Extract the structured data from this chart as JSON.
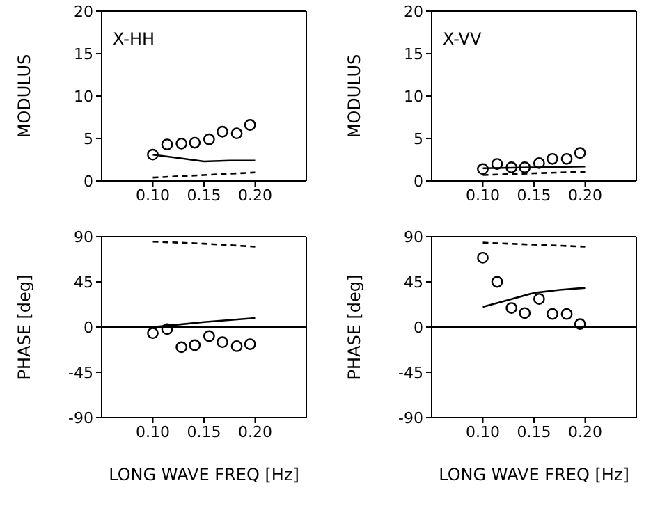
{
  "chart_data": [
    {
      "type": "scatter",
      "ylabel": "MODULUS",
      "annotations": [
        "X-HH"
      ],
      "xlim": [
        0.05,
        0.25
      ],
      "xticks": [
        {
          "value": 0.1,
          "label": "0.10"
        },
        {
          "value": 0.15,
          "label": "0.15"
        },
        {
          "value": 0.2,
          "label": "0.20"
        }
      ],
      "ylim": [
        0,
        20
      ],
      "yticks": [
        0,
        5,
        10,
        15,
        20
      ],
      "series": [
        {
          "marker": "circle",
          "color": "#000000",
          "x": [
            0.1,
            0.114,
            0.128,
            0.141,
            0.155,
            0.168,
            0.182,
            0.195
          ],
          "values": [
            3.1,
            4.3,
            4.4,
            4.5,
            4.9,
            5.8,
            5.6,
            6.6
          ]
        },
        {
          "type": "line",
          "line_style": "solid",
          "color": "#000000",
          "x": [
            0.1,
            0.125,
            0.15,
            0.175,
            0.2
          ],
          "values": [
            3.1,
            2.7,
            2.3,
            2.4,
            2.4
          ]
        },
        {
          "type": "line",
          "line_style": "dashed",
          "color": "#000000",
          "x": [
            0.1,
            0.15,
            0.2
          ],
          "values": [
            0.4,
            0.7,
            1.0
          ]
        }
      ]
    },
    {
      "type": "scatter",
      "ylabel": "MODULUS",
      "annotations": [
        "X-VV"
      ],
      "xlim": [
        0.05,
        0.25
      ],
      "xticks": [
        {
          "value": 0.1,
          "label": "0.10"
        },
        {
          "value": 0.15,
          "label": "0.15"
        },
        {
          "value": 0.2,
          "label": "0.20"
        }
      ],
      "ylim": [
        0,
        20
      ],
      "yticks": [
        0,
        5,
        10,
        15,
        20
      ],
      "series": [
        {
          "marker": "circle",
          "color": "#000000",
          "x": [
            0.1,
            0.114,
            0.128,
            0.141,
            0.155,
            0.168,
            0.182,
            0.195
          ],
          "values": [
            1.4,
            2.0,
            1.6,
            1.6,
            2.1,
            2.6,
            2.6,
            3.3
          ]
        },
        {
          "type": "line",
          "line_style": "solid",
          "color": "#000000",
          "x": [
            0.1,
            0.15,
            0.2
          ],
          "values": [
            1.5,
            1.6,
            1.7
          ]
        },
        {
          "type": "line",
          "line_style": "dashed",
          "color": "#000000",
          "x": [
            0.1,
            0.15,
            0.2
          ],
          "values": [
            0.7,
            0.9,
            1.1
          ]
        }
      ]
    },
    {
      "type": "scatter",
      "ylabel": "PHASE [deg]",
      "xlabel": "LONG WAVE FREQ [Hz]",
      "xlim": [
        0.05,
        0.25
      ],
      "xticks": [
        {
          "value": 0.1,
          "label": "0.10"
        },
        {
          "value": 0.15,
          "label": "0.15"
        },
        {
          "value": 0.2,
          "label": "0.20"
        }
      ],
      "ylim": [
        -90,
        90
      ],
      "yticks": [
        -90,
        -45,
        0,
        45,
        90
      ],
      "ref_lines": [
        {
          "axis": "y",
          "value": 0,
          "color": "#000000"
        }
      ],
      "series": [
        {
          "marker": "circle",
          "color": "#000000",
          "x": [
            0.1,
            0.114,
            0.128,
            0.141,
            0.155,
            0.168,
            0.182,
            0.195
          ],
          "values": [
            -6,
            -2,
            -20,
            -18,
            -9,
            -15,
            -19,
            -17
          ]
        },
        {
          "type": "line",
          "line_style": "solid",
          "color": "#000000",
          "x": [
            0.1,
            0.15,
            0.2
          ],
          "values": [
            0,
            5,
            9
          ]
        },
        {
          "type": "line",
          "line_style": "dashed",
          "color": "#000000",
          "x": [
            0.1,
            0.15,
            0.2
          ],
          "values": [
            85,
            83,
            80
          ]
        }
      ]
    },
    {
      "type": "scatter",
      "ylabel": "PHASE [deg]",
      "xlabel": "LONG WAVE FREQ [Hz]",
      "xlim": [
        0.05,
        0.25
      ],
      "xticks": [
        {
          "value": 0.1,
          "label": "0.10"
        },
        {
          "value": 0.15,
          "label": "0.15"
        },
        {
          "value": 0.2,
          "label": "0.20"
        }
      ],
      "ylim": [
        -90,
        90
      ],
      "yticks": [
        -90,
        -45,
        0,
        45,
        90
      ],
      "ref_lines": [
        {
          "axis": "y",
          "value": 0,
          "color": "#000000"
        }
      ],
      "series": [
        {
          "marker": "circle",
          "color": "#000000",
          "x": [
            0.1,
            0.114,
            0.128,
            0.141,
            0.155,
            0.168,
            0.182,
            0.195
          ],
          "values": [
            69,
            45,
            19,
            14,
            28,
            13,
            13,
            3
          ]
        },
        {
          "type": "line",
          "line_style": "solid",
          "color": "#000000",
          "x": [
            0.1,
            0.125,
            0.15,
            0.175,
            0.2
          ],
          "values": [
            20,
            27,
            34,
            37,
            39
          ]
        },
        {
          "type": "line",
          "line_style": "dashed",
          "color": "#000000",
          "x": [
            0.1,
            0.15,
            0.2
          ],
          "values": [
            84,
            82,
            80
          ]
        }
      ]
    }
  ]
}
